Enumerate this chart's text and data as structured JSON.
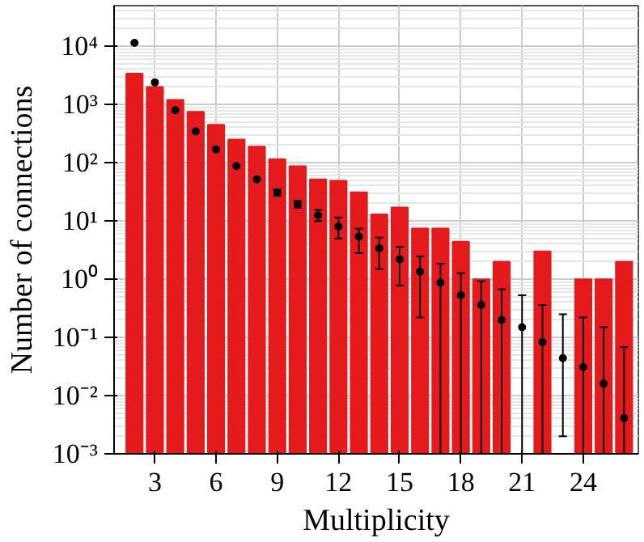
{
  "chart_data": {
    "type": "bar",
    "xlabel": "Multiplicity",
    "ylabel": "Number of connections",
    "log": "y",
    "grid": true,
    "x": [
      2,
      3,
      4,
      5,
      6,
      7,
      8,
      9,
      10,
      11,
      12,
      13,
      14,
      15,
      16,
      17,
      18,
      19,
      20,
      21,
      22,
      23,
      24,
      25,
      26
    ],
    "xlim": [
      1,
      26.7
    ],
    "xticks": [
      3,
      6,
      9,
      12,
      15,
      18,
      21,
      24
    ],
    "ylim": [
      0.001,
      50000
    ],
    "yticks": [
      {
        "value": 0.001,
        "label": "10⁻³"
      },
      {
        "value": 0.01,
        "label": "10⁻²"
      },
      {
        "value": 0.1,
        "label": "10⁻¹"
      },
      {
        "value": 1,
        "label": "10⁰"
      },
      {
        "value": 10,
        "label": "10¹"
      },
      {
        "value": 100,
        "label": "10²"
      },
      {
        "value": 1000,
        "label": "10³"
      },
      {
        "value": 10000,
        "label": "10⁴"
      }
    ],
    "series": [
      {
        "color": "#e41a1c",
        "values": [
          3400,
          2000,
          1200,
          750,
          450,
          250,
          190,
          115,
          87,
          52,
          49,
          31,
          13,
          17,
          7.4,
          7.4,
          4.4,
          1,
          2,
          null,
          3,
          null,
          1,
          1,
          2
        ]
      },
      {
        "type": "scatter",
        "color": "#000000",
        "marker": "circle",
        "values": [
          11500,
          2400,
          800,
          345,
          170,
          88,
          52,
          31,
          19.5,
          12.5,
          8,
          5.4,
          3.4,
          2.2,
          1.35,
          0.87,
          0.53,
          0.36,
          0.2,
          0.15,
          0.083,
          0.044,
          0.031,
          0.016,
          0.0041
        ],
        "errors": [
          null,
          null,
          null,
          null,
          null,
          null,
          null,
          [
            27,
            35
          ],
          [
            17,
            22
          ],
          [
            10,
            15.5
          ],
          [
            5,
            11.5
          ],
          [
            2.8,
            7.4
          ],
          [
            1.5,
            5.2
          ],
          [
            0.78,
            3.6
          ],
          [
            0.22,
            2.45
          ],
          [
            0.001,
            1.85
          ],
          [
            0.001,
            1.27
          ],
          [
            0.001,
            0.92
          ],
          [
            0.001,
            0.67
          ],
          [
            0.001,
            0.53
          ],
          [
            0.001,
            0.36
          ],
          [
            0.002,
            0.25
          ],
          [
            0.001,
            0.22
          ],
          [
            0.001,
            0.15
          ],
          [
            0.001,
            0.068
          ]
        ]
      }
    ]
  }
}
